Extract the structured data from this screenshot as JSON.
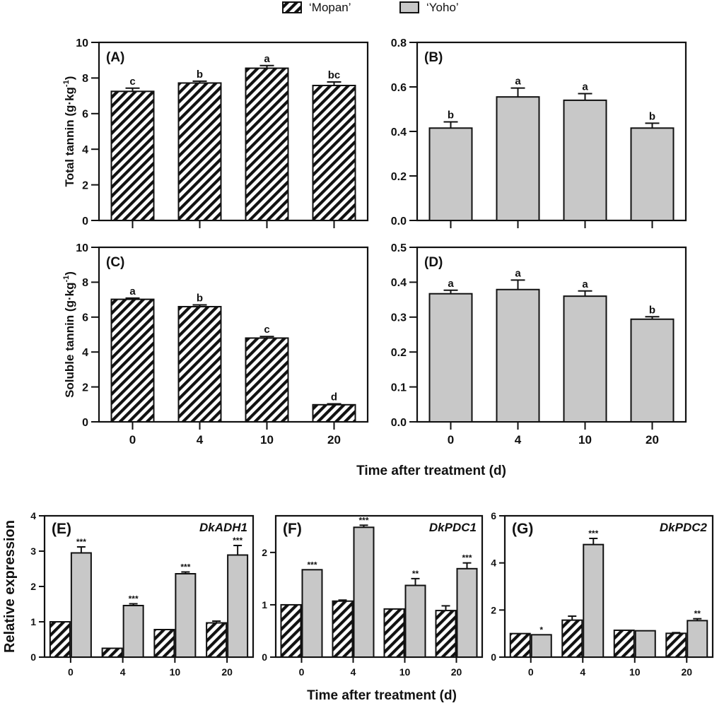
{
  "legend": {
    "mopan": {
      "label": "‘Mopan’",
      "pattern": "hatch"
    },
    "yoho": {
      "label": "‘Yoho’",
      "color": "#c8c8c8"
    }
  },
  "shared_labels": {
    "top_xlabel": "Time after treatment (d)",
    "bottom_xlabel": "Time after treatment (d)",
    "bottom_ylabel": "Relative expression"
  },
  "colors": {
    "yoho_fill": "#c8c8c8",
    "mopan_fill": "#ffffff",
    "ink": "#111111"
  },
  "chart_data": [
    {
      "id": "A",
      "type": "bar",
      "panel_label": "(A)",
      "gene": "",
      "ylabel": "Total tannin (g·kg",
      "ylabel_sup": "-1",
      "ylabel_end": ")",
      "categories": [
        "0",
        "4",
        "10",
        "20"
      ],
      "show_xticks": false,
      "ylim": [
        0,
        10
      ],
      "yticks": [
        "0",
        "2",
        "4",
        "6",
        "8",
        "10"
      ],
      "series": [
        {
          "name": "‘Mopan’",
          "pattern": "hatch",
          "values": [
            7.25,
            7.72,
            8.55,
            7.58
          ],
          "errors": [
            0.18,
            0.1,
            0.15,
            0.2
          ],
          "sig": [
            "c",
            "b",
            "a",
            "bc"
          ]
        }
      ]
    },
    {
      "id": "B",
      "type": "bar",
      "panel_label": "(B)",
      "gene": "",
      "ylabel": "",
      "ylabel_sup": "",
      "ylabel_end": "",
      "categories": [
        "0",
        "4",
        "10",
        "20"
      ],
      "show_xticks": false,
      "ylim": [
        0,
        0.8
      ],
      "yticks": [
        "0.0",
        "0.2",
        "0.4",
        "0.6",
        "0.8"
      ],
      "series": [
        {
          "name": "‘Yoho’",
          "pattern": "solid",
          "values": [
            0.415,
            0.555,
            0.54,
            0.415
          ],
          "errors": [
            0.028,
            0.04,
            0.03,
            0.022
          ],
          "sig": [
            "b",
            "a",
            "a",
            "b"
          ]
        }
      ]
    },
    {
      "id": "C",
      "type": "bar",
      "panel_label": "(C)",
      "gene": "",
      "ylabel": "Soluble tannin (g·kg",
      "ylabel_sup": "-1",
      "ylabel_end": ")",
      "categories": [
        "0",
        "4",
        "10",
        "20"
      ],
      "show_xticks": true,
      "ylim": [
        0,
        10
      ],
      "yticks": [
        "0",
        "2",
        "4",
        "6",
        "8",
        "10"
      ],
      "series": [
        {
          "name": "‘Mopan’",
          "pattern": "hatch",
          "values": [
            7.02,
            6.6,
            4.8,
            0.98
          ],
          "errors": [
            0.07,
            0.1,
            0.09,
            0.05
          ],
          "sig": [
            "a",
            "b",
            "c",
            "d"
          ]
        }
      ]
    },
    {
      "id": "D",
      "type": "bar",
      "panel_label": "(D)",
      "gene": "",
      "ylabel": "",
      "ylabel_sup": "",
      "ylabel_end": "",
      "categories": [
        "0",
        "4",
        "10",
        "20"
      ],
      "show_xticks": true,
      "ylim": [
        0,
        0.5
      ],
      "yticks": [
        "0.0",
        "0.1",
        "0.2",
        "0.3",
        "0.4",
        "0.5"
      ],
      "series": [
        {
          "name": "‘Yoho’",
          "pattern": "solid",
          "values": [
            0.367,
            0.379,
            0.36,
            0.294
          ],
          "errors": [
            0.01,
            0.027,
            0.015,
            0.007
          ],
          "sig": [
            "a",
            "a",
            "a",
            "b"
          ]
        }
      ]
    },
    {
      "id": "E",
      "type": "bar",
      "panel_label": "(E)",
      "gene": "DkADH1",
      "ylabel": "",
      "ylabel_sup": "",
      "ylabel_end": "",
      "categories": [
        "0",
        "4",
        "10",
        "20"
      ],
      "show_xticks": true,
      "ylim": [
        0,
        4
      ],
      "yticks": [
        "0",
        "1",
        "2",
        "3",
        "4"
      ],
      "series": [
        {
          "name": "‘Mopan’",
          "pattern": "hatch",
          "values": [
            1.0,
            0.25,
            0.78,
            0.97
          ],
          "errors": [
            0.0,
            0.0,
            0.0,
            0.05
          ],
          "sig": [
            "",
            "",
            "",
            ""
          ]
        },
        {
          "name": "‘Yoho’",
          "pattern": "solid",
          "values": [
            2.95,
            1.46,
            2.36,
            2.89
          ],
          "errors": [
            0.17,
            0.05,
            0.05,
            0.27
          ],
          "sig": [
            "***",
            "***",
            "***",
            "***"
          ]
        }
      ]
    },
    {
      "id": "F",
      "type": "bar",
      "panel_label": "(F)",
      "gene": "DkPDC1",
      "ylabel": "",
      "ylabel_sup": "",
      "ylabel_end": "",
      "categories": [
        "0",
        "4",
        "10",
        "20"
      ],
      "show_xticks": true,
      "ylim": [
        0,
        2.7
      ],
      "yticks": [
        "0",
        "1",
        "2"
      ],
      "series": [
        {
          "name": "‘Mopan’",
          "pattern": "hatch",
          "values": [
            1.0,
            1.07,
            0.92,
            0.89
          ],
          "errors": [
            0.0,
            0.02,
            0.0,
            0.09
          ],
          "sig": [
            "",
            "",
            "",
            ""
          ]
        },
        {
          "name": "‘Yoho’",
          "pattern": "solid",
          "values": [
            1.67,
            2.48,
            1.37,
            1.69
          ],
          "errors": [
            0.0,
            0.04,
            0.13,
            0.11
          ],
          "sig": [
            "***",
            "***",
            "**",
            "***"
          ]
        }
      ]
    },
    {
      "id": "G",
      "type": "bar",
      "panel_label": "(G)",
      "gene": "DkPDC2",
      "ylabel": "",
      "ylabel_sup": "",
      "ylabel_end": "",
      "categories": [
        "0",
        "4",
        "10",
        "20"
      ],
      "show_xticks": true,
      "ylim": [
        0,
        6
      ],
      "yticks": [
        "0",
        "2",
        "4",
        "6"
      ],
      "series": [
        {
          "name": "‘Mopan’",
          "pattern": "hatch",
          "values": [
            1.0,
            1.57,
            1.14,
            1.01
          ],
          "errors": [
            0.0,
            0.17,
            0.0,
            0.03
          ],
          "sig": [
            "",
            "",
            "",
            ""
          ]
        },
        {
          "name": "‘Yoho’",
          "pattern": "solid",
          "values": [
            0.95,
            4.78,
            1.12,
            1.55
          ],
          "errors": [
            0.0,
            0.26,
            0.0,
            0.08
          ],
          "sig": [
            "*",
            "***",
            "",
            "**"
          ]
        }
      ]
    }
  ]
}
